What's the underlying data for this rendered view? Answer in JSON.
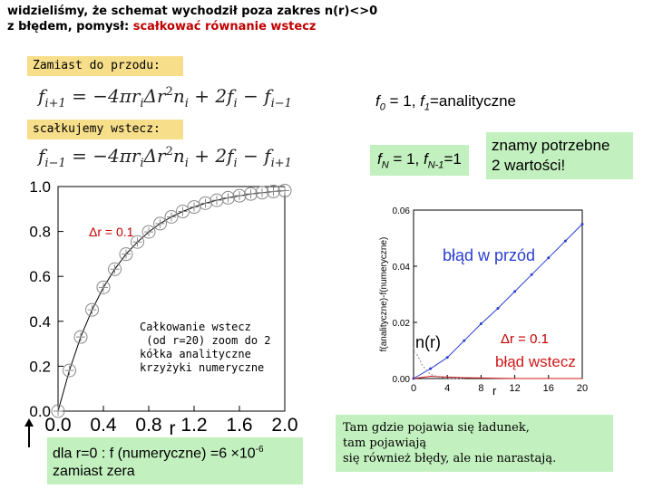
{
  "header": {
    "line1": "widzieliśmy, że schemat wychodził poza zakres n(r)<>0",
    "line2_prefix": "z błędem, pomysł: ",
    "line2_highlight": "scałkować równanie wstecz"
  },
  "boxes": {
    "forward_label": "Zamiast do przodu:",
    "backward_label": "scałkujemy wstecz:"
  },
  "equations": {
    "forward": {
      "lhs": "f",
      "lhs_sub": "i+1",
      "rhs_a": " = −4πr",
      "rhs_a_sub": "i",
      "rhs_b": "Δr",
      "rhs_b_sup": "2",
      "rhs_c": "n",
      "rhs_c_sub": "i",
      "rhs_d": " + 2f",
      "rhs_d_sub": "i",
      "rhs_e": " − f",
      "rhs_e_sub": "i−1"
    },
    "backward": {
      "lhs": "f",
      "lhs_sub": "i−1",
      "rhs_a": " = −4πr",
      "rhs_a_sub": "i",
      "rhs_b": "Δr",
      "rhs_b_sup": "2",
      "rhs_c": "n",
      "rhs_c_sub": "i",
      "rhs_d": " + 2f",
      "rhs_d_sub": "i",
      "rhs_e": " − f",
      "rhs_e_sub": "i+1"
    }
  },
  "conditions": {
    "forward": {
      "f0": "f",
      "f0_sub": "0",
      "f0_rest": " = 1, ",
      "f1": "f",
      "f1_sub": "1",
      "f1_rest": "=analityczne"
    },
    "backward": {
      "fN": "f",
      "fN_sub": "N",
      "fN_rest": " = 1, ",
      "fN1": "f",
      "fN1_sub": "N-1",
      "fN1_rest": "=1"
    }
  },
  "needed_box": {
    "line1": "znamy potrzebne",
    "line2": "2 wartości!"
  },
  "left_chart": {
    "delta_r": "Δr = 0.1",
    "r_label": "r",
    "y_ticks": [
      "1.0",
      "0.8",
      "0.6",
      "0.4",
      "0.2",
      "0.0"
    ],
    "x_ticks": [
      "0.0",
      "0.4",
      "0.8",
      "1.2",
      "1.6",
      "2.0"
    ],
    "note": "Całkowanie wstecz\n (od r=20) zoom do 2\nkółka analityczne\nkrzyżyki numeryczne"
  },
  "right_chart": {
    "ylabel": "f(analityczne)-f(numeryczne)",
    "y_ticks": [
      "0.06",
      "0.04",
      "0.02",
      "0.00"
    ],
    "x_ticks": [
      "0",
      "4",
      "8",
      "12",
      "16",
      "20"
    ],
    "forward_error_label": "błąd w przód",
    "backward_error_label": "błąd wstecz",
    "nr_label": "n(r)",
    "delta_r": "Δr = 0.1",
    "r_label": "r"
  },
  "bottom_left_box": {
    "line1": "dla r=0 : f (numeryczne) =6 ×10",
    "exp": "-6",
    "line2": "zamiast zera"
  },
  "bottom_right_box": {
    "line1": "Tam gdzie pojawia się ładunek,",
    "line2": "tam pojawiają",
    "line3": "się również błędy, ale nie narastają."
  },
  "colors": {
    "highlight_red": "#c00000",
    "yellow_box": "#f6de8a",
    "green_box": "#c3f0bf",
    "forward_blue": "#2a3fd0",
    "backward_red": "#d01818"
  },
  "chart_data": [
    {
      "type": "scatter",
      "xlim": [
        0,
        2.0
      ],
      "ylim": [
        0,
        1.0
      ],
      "x_ticks": [
        0.0,
        0.4,
        0.8,
        1.2,
        1.6,
        2.0
      ],
      "y_ticks": [
        0.0,
        0.2,
        0.4,
        0.6,
        0.8,
        1.0
      ],
      "series": [
        {
          "x": [
            0.0,
            0.1,
            0.2,
            0.3,
            0.4,
            0.5,
            0.6,
            0.7,
            0.8,
            0.9,
            1.0,
            1.1,
            1.2,
            1.3,
            1.4,
            1.5,
            1.6,
            1.7,
            1.8,
            1.9,
            2.0
          ],
          "y": [
            0.0,
            0.181,
            0.33,
            0.451,
            0.551,
            0.632,
            0.699,
            0.753,
            0.798,
            0.835,
            0.865,
            0.889,
            0.909,
            0.926,
            0.939,
            0.95,
            0.959,
            0.967,
            0.973,
            0.978,
            0.982
          ]
        }
      ]
    },
    {
      "type": "line",
      "xlim": [
        0,
        20
      ],
      "ylim": [
        0,
        0.06
      ],
      "x_ticks": [
        0,
        4,
        8,
        12,
        16,
        20
      ],
      "y_ticks": [
        0.0,
        0.02,
        0.04,
        0.06
      ],
      "series": [
        {
          "name": "błąd w przód",
          "x": [
            0,
            2,
            4,
            6,
            8,
            10,
            12,
            14,
            16,
            18,
            20
          ],
          "y": [
            0.0,
            0.0035,
            0.0075,
            0.0135,
            0.0195,
            0.025,
            0.031,
            0.037,
            0.043,
            0.049,
            0.055
          ]
        },
        {
          "name": "błąd wstecz",
          "x": [
            0,
            2,
            4,
            6,
            8,
            10,
            12,
            14,
            16,
            18,
            20
          ],
          "y": [
            0.0,
            0.0008,
            0.0005,
            0.0003,
            0.0002,
            0.0001,
            0.0,
            0.0,
            0.0,
            0.0,
            0.0
          ]
        },
        {
          "name": "n(r)",
          "x": [
            0,
            0.5,
            1,
            1.5,
            2,
            3,
            4,
            6
          ],
          "y": [
            0.011,
            0.008,
            0.005,
            0.003,
            0.0015,
            0.0005,
            0.0001,
            0.0
          ]
        }
      ]
    }
  ]
}
